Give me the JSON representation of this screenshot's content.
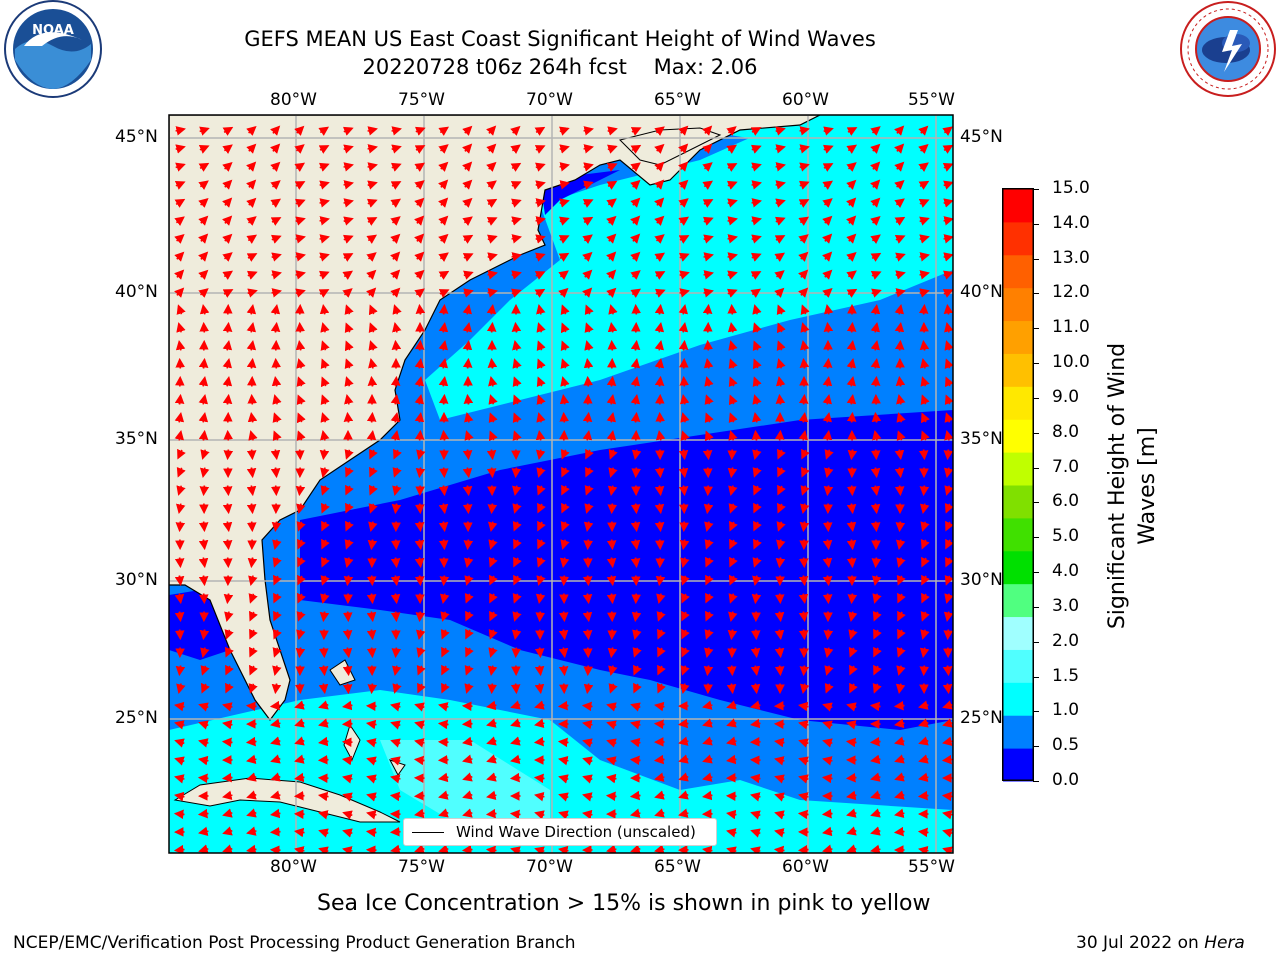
{
  "header": {
    "title_line1": "GEFS MEAN US East Coast Significant Height of Wind Waves",
    "title_line2": "20220728 t06z 264h fcst    Max: 2.06"
  },
  "logos": {
    "left": {
      "name": "noaa-logo",
      "text": "NOAA",
      "ring_text": "NATIONAL OCEANIC AND ATMOSPHERIC ADMINISTRATION · U.S. DEPARTMENT OF COMMERCE"
    },
    "right": {
      "name": "nws-logo",
      "ring_text": "NATIONAL WEATHER SERVICE"
    }
  },
  "map": {
    "lon_labels": [
      "80°W",
      "75°W",
      "70°W",
      "65°W",
      "60°W",
      "55°W"
    ],
    "lat_labels": [
      "45°N",
      "40°N",
      "35°N",
      "30°N",
      "25°N"
    ],
    "legend_label": "Wind Wave Direction (unscaled)",
    "colors": {
      "land": "#efecdc",
      "coast": "#000000",
      "grid": "#b4b4b4",
      "arrow": "#ff0000"
    }
  },
  "colorbar": {
    "label_line1": "Significant Height of Wind",
    "label_line2": "Waves [m]",
    "ticks": [
      "15.0",
      "14.0",
      "13.0",
      "12.0",
      "11.0",
      "10.0",
      "9.0",
      "8.0",
      "7.0",
      "6.0",
      "5.0",
      "4.0",
      "3.0",
      "2.0",
      "1.5",
      "1.0",
      "0.5",
      "0.0"
    ],
    "colors": [
      "#0000ff",
      "#0080ff",
      "#00ffff",
      "#50ffff",
      "#a0ffff",
      "#50ff80",
      "#00e000",
      "#40e000",
      "#80e000",
      "#c0ff00",
      "#ffff00",
      "#ffe800",
      "#ffc000",
      "#ffa000",
      "#ff8000",
      "#ff6000",
      "#ff3000",
      "#ff0000"
    ]
  },
  "footer": {
    "note": "Sea Ice Concentration > 15% is shown in pink to yellow",
    "left": "NCEP/EMC/Verification Post Processing Product Generation Branch",
    "right_prefix": "30 Jul 2022 on ",
    "right_emph": "Hera"
  }
}
